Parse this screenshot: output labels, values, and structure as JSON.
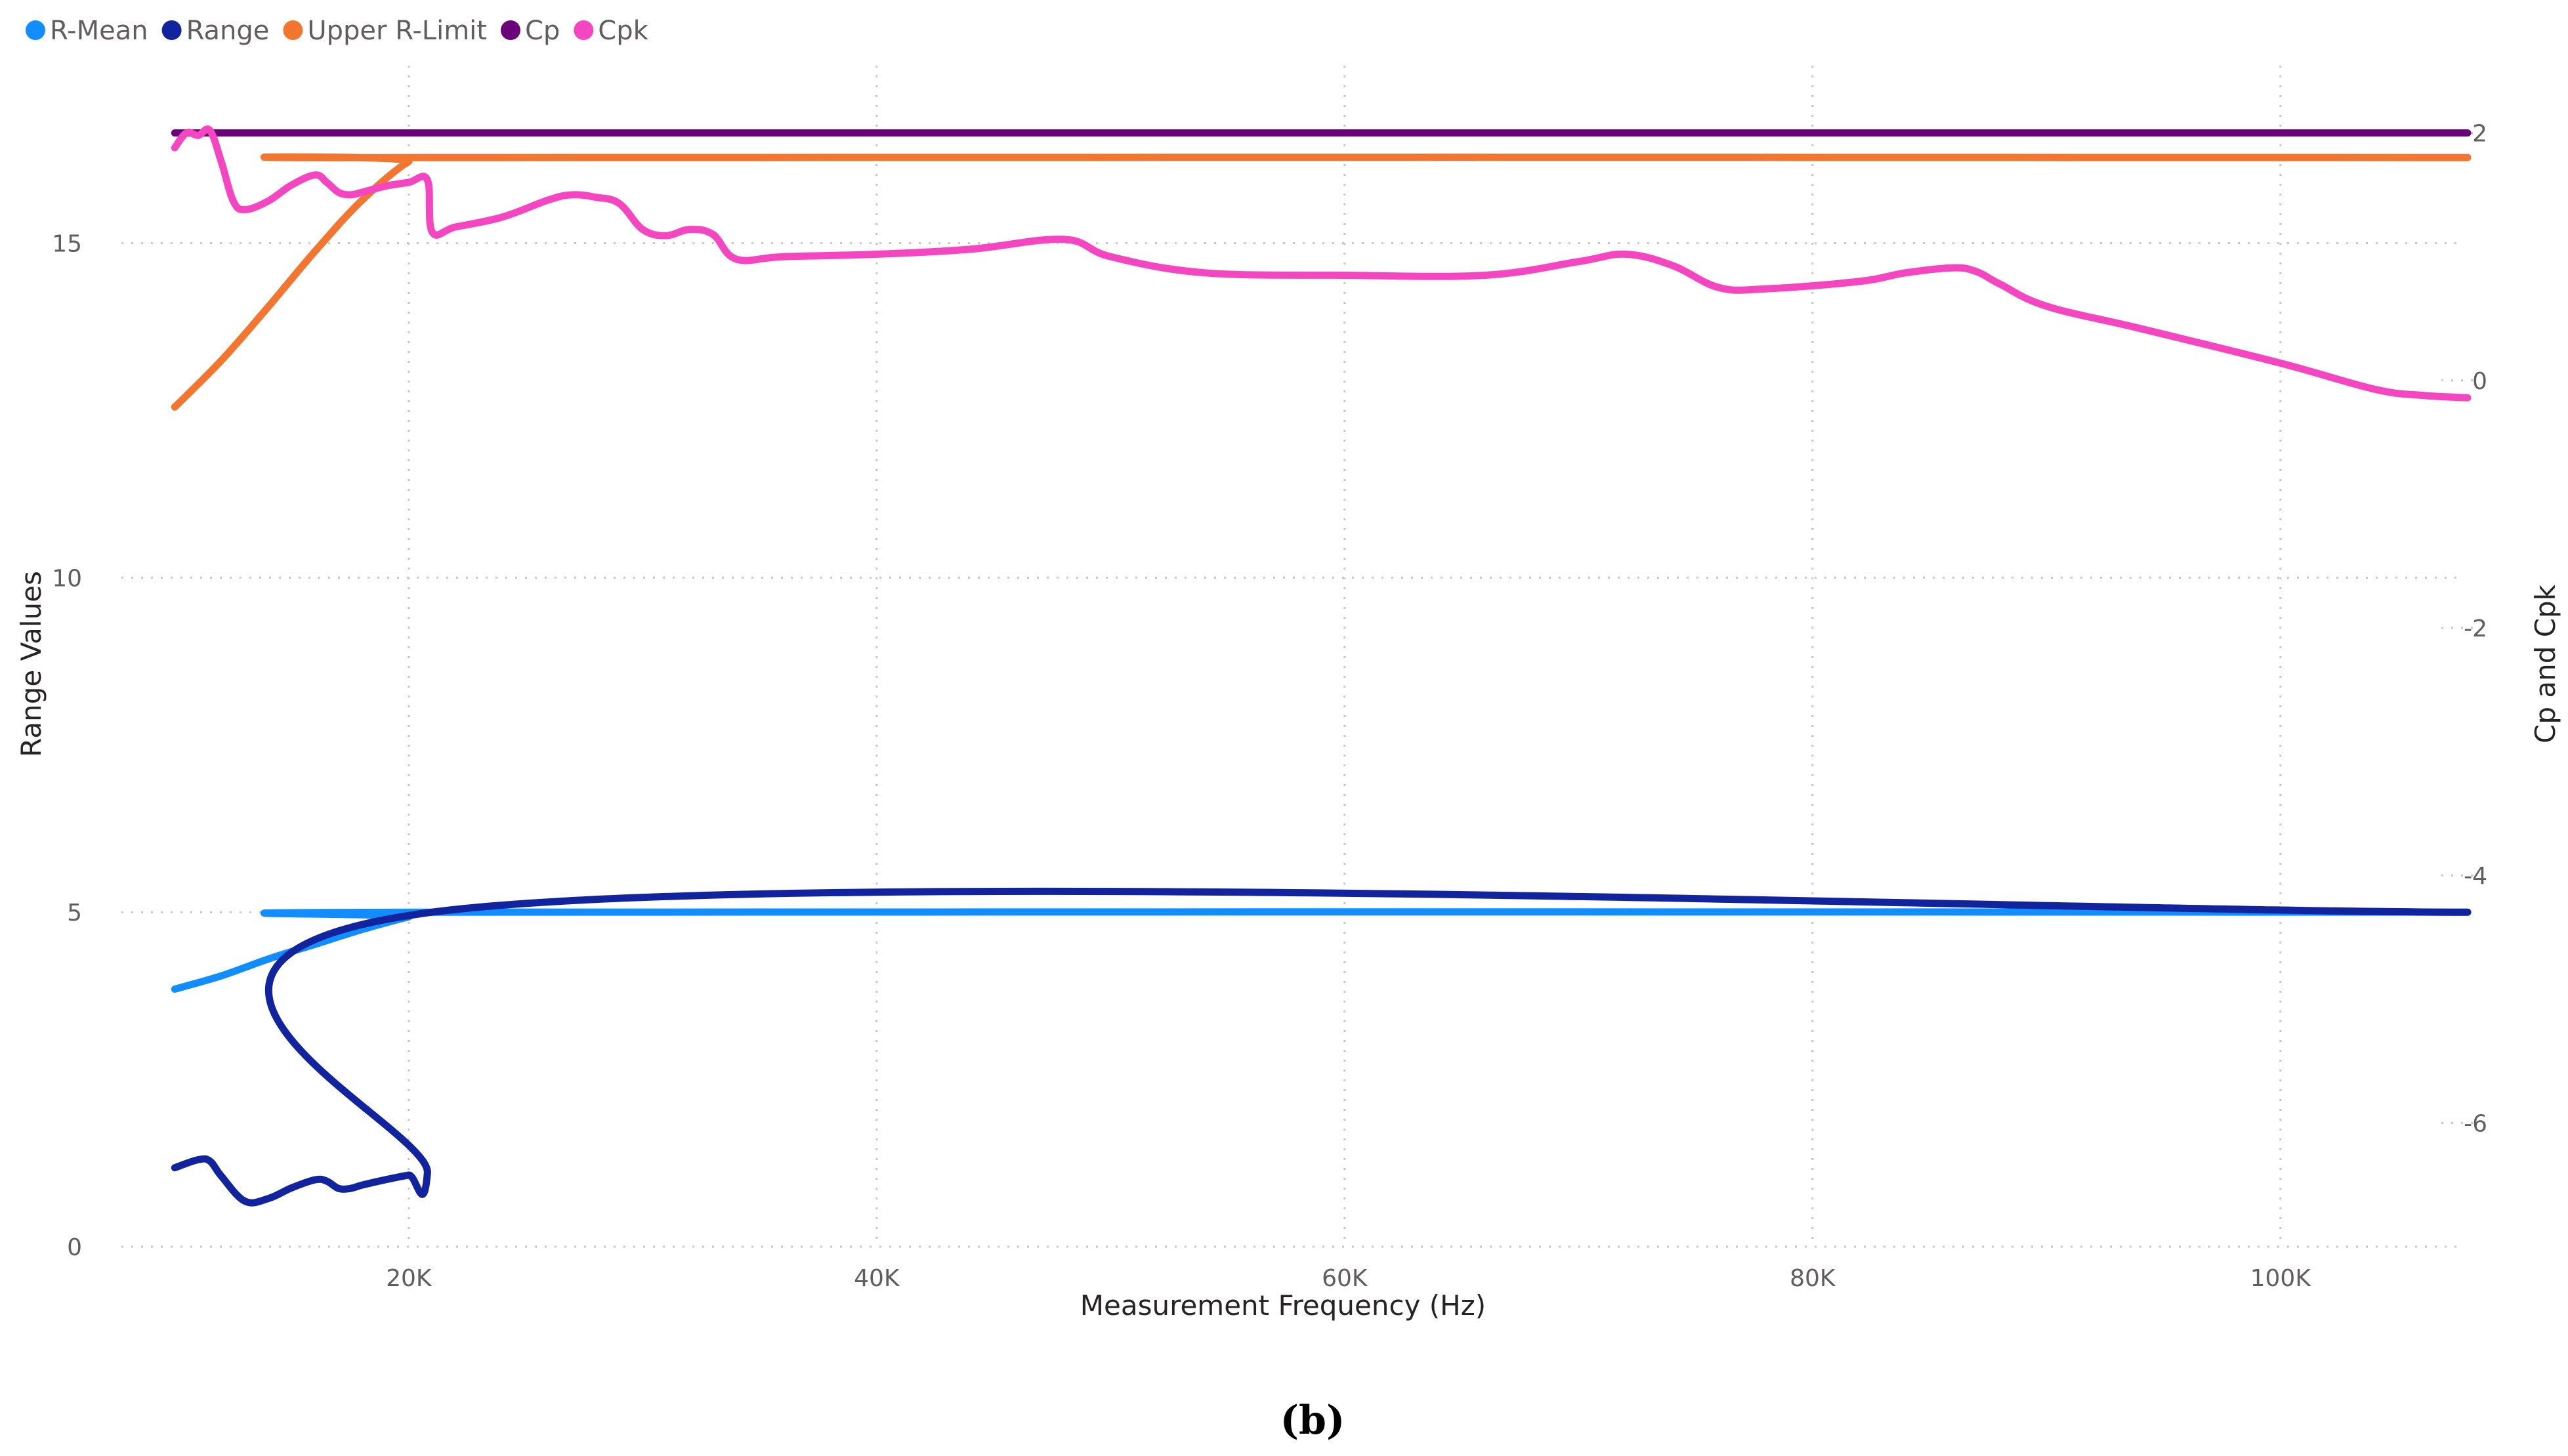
{
  "caption": "(b)",
  "chart_data": {
    "type": "line",
    "xlabel": "Measurement Frequency (Hz)",
    "ylabel_left": "Range Values",
    "ylabel_right": "Cp and Cpk",
    "x_ticks": [
      {
        "value": 20000,
        "label": "20K"
      },
      {
        "value": 40000,
        "label": "40K"
      },
      {
        "value": 60000,
        "label": "60K"
      },
      {
        "value": 80000,
        "label": "80K"
      },
      {
        "value": 100000,
        "label": "100K"
      }
    ],
    "y_left_ticks": [
      {
        "value": 0,
        "label": "0"
      },
      {
        "value": 5,
        "label": "5"
      },
      {
        "value": 10,
        "label": "10"
      },
      {
        "value": 15,
        "label": "15"
      }
    ],
    "y_right_ticks": [
      {
        "value": 2,
        "label": "2"
      },
      {
        "value": 0,
        "label": "0"
      },
      {
        "value": -2,
        "label": "-2"
      },
      {
        "value": -4,
        "label": "-4"
      },
      {
        "value": -6,
        "label": "-6"
      }
    ],
    "xlim": [
      8000,
      108000
    ],
    "ylim_left": [
      0,
      17.85
    ],
    "ylim_right": [
      -7.0,
      2.65
    ],
    "legend_position": "top-left",
    "series": [
      {
        "name": "R-Mean",
        "axis": "left",
        "color": "#118DFF",
        "x": [
          10000,
          12000,
          14000,
          16000,
          18000,
          20000,
          21000,
          108000
        ],
        "y": [
          3.85,
          4.05,
          4.3,
          4.52,
          4.74,
          4.93,
          5.0,
          5.0
        ]
      },
      {
        "name": "Range",
        "axis": "left",
        "color": "#12239E",
        "x": [
          10000,
          11000,
          11500,
          12000,
          13000,
          14000,
          15000,
          16000,
          16500,
          17000,
          17500,
          18000,
          19000,
          20000,
          20800,
          21000,
          108000
        ],
        "y": [
          1.18,
          1.3,
          1.28,
          1.05,
          0.68,
          0.72,
          0.88,
          1.0,
          0.98,
          0.87,
          0.87,
          0.92,
          1.0,
          1.07,
          1.1,
          5.0,
          5.0
        ]
      },
      {
        "name": "Upper R-Limit",
        "axis": "left",
        "color": "#F2762F",
        "x": [
          10000,
          12000,
          14000,
          16000,
          18000,
          20000,
          21000,
          108000
        ],
        "y": [
          12.55,
          13.25,
          14.05,
          14.88,
          15.64,
          16.22,
          16.28,
          16.28
        ]
      },
      {
        "name": "Cp",
        "axis": "right",
        "color": "#6B007B",
        "x": [
          10000,
          108000
        ],
        "y": [
          2.0,
          2.0
        ]
      },
      {
        "name": "Cpk",
        "axis": "right",
        "color": "#F546C1",
        "x": [
          10000,
          10500,
          11000,
          11500,
          12000,
          12500,
          13000,
          14000,
          15000,
          16000,
          16500,
          17000,
          17500,
          18000,
          19000,
          20000,
          20800,
          21000,
          22000,
          24000,
          26000,
          27000,
          28000,
          29000,
          30000,
          31000,
          32000,
          33000,
          34000,
          36000,
          40000,
          44000,
          48000,
          50000,
          54000,
          60000,
          66000,
          70000,
          72000,
          74000,
          76000,
          78000,
          82000,
          84000,
          86000,
          87000,
          88000,
          90000,
          94000,
          100000,
          104000,
          106000,
          108000
        ],
        "y": [
          1.88,
          2.0,
          1.98,
          2.02,
          1.76,
          1.45,
          1.38,
          1.45,
          1.58,
          1.66,
          1.6,
          1.52,
          1.5,
          1.52,
          1.57,
          1.6,
          1.62,
          1.2,
          1.24,
          1.32,
          1.46,
          1.5,
          1.48,
          1.43,
          1.22,
          1.17,
          1.22,
          1.18,
          0.98,
          1.0,
          1.02,
          1.06,
          1.14,
          1.0,
          0.87,
          0.85,
          0.85,
          0.96,
          1.02,
          0.93,
          0.75,
          0.74,
          0.8,
          0.87,
          0.91,
          0.88,
          0.78,
          0.6,
          0.42,
          0.14,
          -0.07,
          -0.12,
          -0.14
        ]
      }
    ]
  }
}
